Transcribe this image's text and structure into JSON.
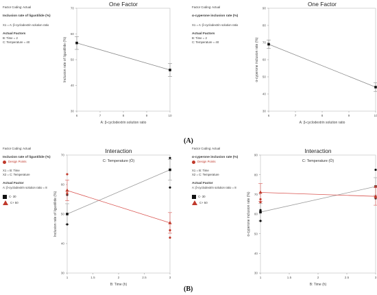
{
  "panel_labels": [
    "(A)",
    "(B)"
  ],
  "side": {
    "a1": {
      "coding": "Factor Coding: Actual",
      "response": "Inclusion rate of ligustilide (%)",
      "x1": "X1 = A: β-cyclodextrin solution ratio",
      "actual_title": "Actual Factors",
      "f1": "B: Time = 2",
      "f2": "C: Temperature = 40"
    },
    "a2": {
      "coding": "Factor Coding: Actual",
      "response": "α-cyperone inclusion rate (%)",
      "x1": "X1 = A: β-cyclodextrin solution ratio",
      "actual_title": "Actual Factors",
      "f1": "B: Time = 2",
      "f2": "C: Temperature = 40"
    },
    "b1": {
      "coding": "Factor Coding: Actual",
      "response": "Inclusion rate of ligustilide (%)",
      "design_points": "Design Points",
      "x1": "X1 = B: Time",
      "x2": "X2 = C: Temperature",
      "actual_title": "Actual Factor",
      "f1": "A: β-cyclodextrin solution ratio = 8",
      "c_low": "C- 30",
      "c_high": "C+ 50"
    },
    "b2": {
      "coding": "Factor Coding: Actual",
      "response": "α-cyperone inclusion rate (%)",
      "design_points": "Design Points",
      "x1": "X1 = B: Time",
      "x2": "X2 = C: Temperature",
      "actual_title": "Actual Factor",
      "f1": "A: β-cyclodextrin solution ratio = 8",
      "c_low": "C- 30",
      "c_high": "C+ 50"
    }
  },
  "colors": {
    "low": "#111111",
    "high": "#c0392b",
    "line": "#888888",
    "lowline": "#999999",
    "highline": "#d9534f"
  },
  "chart_data": [
    {
      "type": "line",
      "title": "One Factor",
      "xlabel": "A: β-cyclodextrin solution ratio",
      "ylabel": "Inclusion rate of ligustilide (%)",
      "xlim": [
        6,
        10
      ],
      "ylim": [
        30,
        70
      ],
      "xticks": [
        "6",
        "7",
        "8",
        "9",
        "10"
      ],
      "yticks": [
        "30",
        "40",
        "50",
        "60",
        "70"
      ],
      "series": [
        {
          "x": [
            6,
            10
          ],
          "y": [
            56.5,
            46
          ],
          "err": [
            2.5,
            2.5
          ]
        }
      ]
    },
    {
      "type": "line",
      "title": "One Factor",
      "xlabel": "A: β-cyclodextrin solution ratio",
      "ylabel": "α-cyperone inclusion rate (%)",
      "xlim": [
        6,
        10
      ],
      "ylim": [
        30,
        90
      ],
      "xticks": [
        "6",
        "7",
        "8",
        "9",
        "10"
      ],
      "yticks": [
        "30",
        "40",
        "50",
        "60",
        "70",
        "80",
        "90"
      ],
      "series": [
        {
          "x": [
            6,
            10
          ],
          "y": [
            69,
            44
          ],
          "err": [
            2.5,
            2.5
          ]
        }
      ]
    },
    {
      "type": "line",
      "title": "Interaction",
      "subtitle": "C: Temperature (Ö)",
      "xlabel": "B: Time (h)",
      "ylabel": "Inclusion rate of ligustilide (%)",
      "xlim": [
        1,
        3
      ],
      "ylim": [
        30,
        70
      ],
      "xticks": [
        "1",
        "1.5",
        "2",
        "2.5",
        "3"
      ],
      "yticks": [
        "30",
        "40",
        "50",
        "60",
        "70"
      ],
      "series": [
        {
          "name": "C- 30",
          "x": [
            1,
            3
          ],
          "y": [
            50,
            65
          ],
          "err": [
            3.5,
            3.5
          ],
          "points": [
            [
              1,
              46.5
            ],
            [
              1,
              56.5
            ],
            [
              3,
              59
            ],
            [
              3,
              69
            ]
          ]
        },
        {
          "name": "C+ 50",
          "x": [
            1,
            3
          ],
          "y": [
            58,
            47
          ],
          "err": [
            3.5,
            3.5
          ],
          "points": [
            [
              1,
              63.5
            ],
            [
              1,
              57
            ],
            [
              3,
              44.5
            ],
            [
              3,
              42
            ]
          ]
        }
      ]
    },
    {
      "type": "line",
      "title": "Interaction",
      "subtitle": "C: Temperature (Ö)",
      "xlabel": "B: Time (h)",
      "ylabel": "α-cyperone inclusion rate (%)",
      "xlim": [
        1,
        3
      ],
      "ylim": [
        30,
        90
      ],
      "xticks": [
        "1",
        "1.5",
        "2",
        "2.5",
        "3"
      ],
      "yticks": [
        "30",
        "40",
        "50",
        "60",
        "70",
        "80",
        "90"
      ],
      "series": [
        {
          "name": "C- 30",
          "x": [
            1,
            3
          ],
          "y": [
            61,
            74
          ],
          "err": [
            4.5,
            4.5
          ],
          "points": [
            [
              1,
              56.5
            ],
            [
              1,
              62
            ],
            [
              3,
              82.5
            ],
            [
              3,
              68
            ]
          ]
        },
        {
          "name": "C+ 50",
          "x": [
            1,
            3
          ],
          "y": [
            71,
            69
          ],
          "err": [
            4.5,
            4.5
          ],
          "points": [
            [
              1,
              66
            ],
            [
              1,
              67.5
            ],
            [
              3,
              74
            ],
            [
              3,
              68.5
            ]
          ]
        }
      ]
    }
  ]
}
